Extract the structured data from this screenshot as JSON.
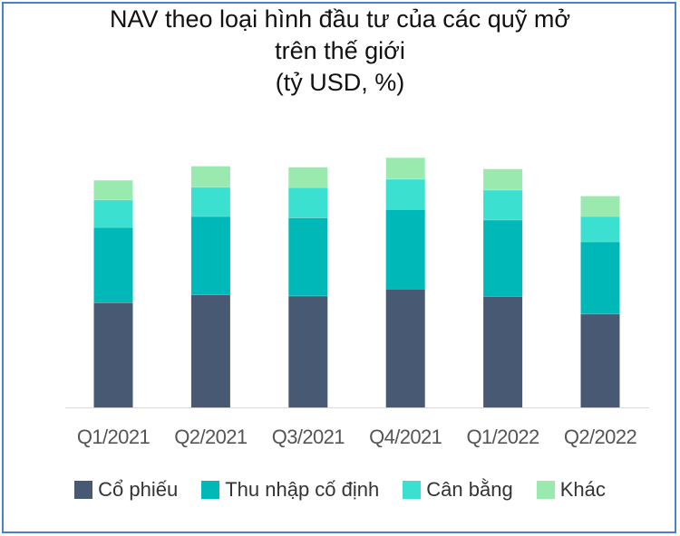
{
  "chart_data": {
    "type": "bar",
    "stacked": true,
    "title": [
      "NAV theo loại hình đầu tư của các quỹ mở",
      "trên thế giới",
      "(tỷ USD, %)"
    ],
    "xlabel": "",
    "ylabel": "",
    "categories": [
      "Q1/2021",
      "Q2/2021",
      "Q3/2021",
      "Q4/2021",
      "Q1/2022",
      "Q2/2022"
    ],
    "series": [
      {
        "name": "Cổ phiếu",
        "color": "#485a73",
        "values": [
          29800,
          32100,
          31700,
          33700,
          31600,
          26600
        ]
      },
      {
        "name": "Thu nhập cố định",
        "color": "#00b8b8",
        "values": [
          21400,
          22200,
          22200,
          22600,
          21700,
          20500
        ]
      },
      {
        "name": "Cân bằng",
        "color": "#3ce0d0",
        "values": [
          7800,
          8300,
          8600,
          8600,
          8500,
          7200
        ]
      },
      {
        "name": "Khác",
        "color": "#9aeab0",
        "values": [
          5600,
          6000,
          5800,
          6100,
          6000,
          5800
        ]
      }
    ],
    "ylim": [
      0,
      71000
    ],
    "grid": false,
    "legend_position": "bottom"
  }
}
